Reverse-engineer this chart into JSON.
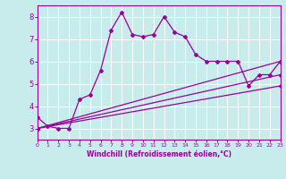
{
  "xlabel": "Windchill (Refroidissement éolien,°C)",
  "background_color": "#c8ecec",
  "grid_color": "#ffffff",
  "line_color": "#990099",
  "x_min": 0,
  "x_max": 23,
  "y_min": 2.5,
  "y_max": 8.5,
  "yticks": [
    3,
    4,
    5,
    6,
    7,
    8
  ],
  "xticks": [
    0,
    1,
    2,
    3,
    4,
    5,
    6,
    7,
    8,
    9,
    10,
    11,
    12,
    13,
    14,
    15,
    16,
    17,
    18,
    19,
    20,
    21,
    22,
    23
  ],
  "line1_x": [
    0,
    1,
    2,
    3,
    4,
    5,
    6,
    7,
    8,
    9,
    10,
    11,
    12,
    13,
    14,
    15,
    16,
    17,
    18,
    19,
    20,
    21,
    22,
    23
  ],
  "line1_y": [
    3.5,
    3.1,
    3.0,
    3.0,
    4.3,
    4.5,
    5.6,
    7.4,
    8.2,
    7.2,
    7.1,
    7.2,
    8.0,
    7.3,
    7.1,
    6.3,
    6.0,
    6.0,
    6.0,
    6.0,
    4.9,
    5.4,
    5.4,
    6.0
  ],
  "line2_x": [
    0,
    23
  ],
  "line2_y": [
    3.0,
    6.0
  ],
  "line3_x": [
    0,
    23
  ],
  "line3_y": [
    3.0,
    5.4
  ],
  "line4_x": [
    0,
    23
  ],
  "line4_y": [
    3.0,
    4.9
  ]
}
